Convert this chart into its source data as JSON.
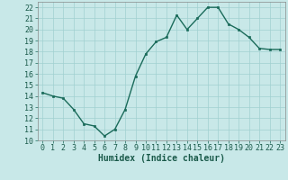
{
  "x": [
    0,
    1,
    2,
    3,
    4,
    5,
    6,
    7,
    8,
    9,
    10,
    11,
    12,
    13,
    14,
    15,
    16,
    17,
    18,
    19,
    20,
    21,
    22,
    23
  ],
  "y": [
    14.3,
    14.0,
    13.8,
    12.8,
    11.5,
    11.3,
    10.4,
    11.0,
    12.8,
    15.8,
    17.8,
    18.9,
    19.3,
    21.3,
    20.0,
    21.0,
    22.0,
    22.0,
    20.5,
    20.0,
    19.3,
    18.3,
    18.2,
    18.2
  ],
  "title": "",
  "xlabel": "Humidex (Indice chaleur)",
  "ylabel": "",
  "xlim": [
    -0.5,
    23.5
  ],
  "ylim": [
    10,
    22.5
  ],
  "yticks": [
    10,
    11,
    12,
    13,
    14,
    15,
    16,
    17,
    18,
    19,
    20,
    21,
    22
  ],
  "xticks": [
    0,
    1,
    2,
    3,
    4,
    5,
    6,
    7,
    8,
    9,
    10,
    11,
    12,
    13,
    14,
    15,
    16,
    17,
    18,
    19,
    20,
    21,
    22,
    23
  ],
  "line_color": "#1a6b5a",
  "marker_color": "#1a6b5a",
  "bg_color": "#c8e8e8",
  "grid_color": "#a0d0d0",
  "fig_bg": "#c8e8e8",
  "tick_fontsize": 6.0,
  "xlabel_fontsize": 7.0,
  "marker_size": 2.0,
  "line_width": 1.0
}
